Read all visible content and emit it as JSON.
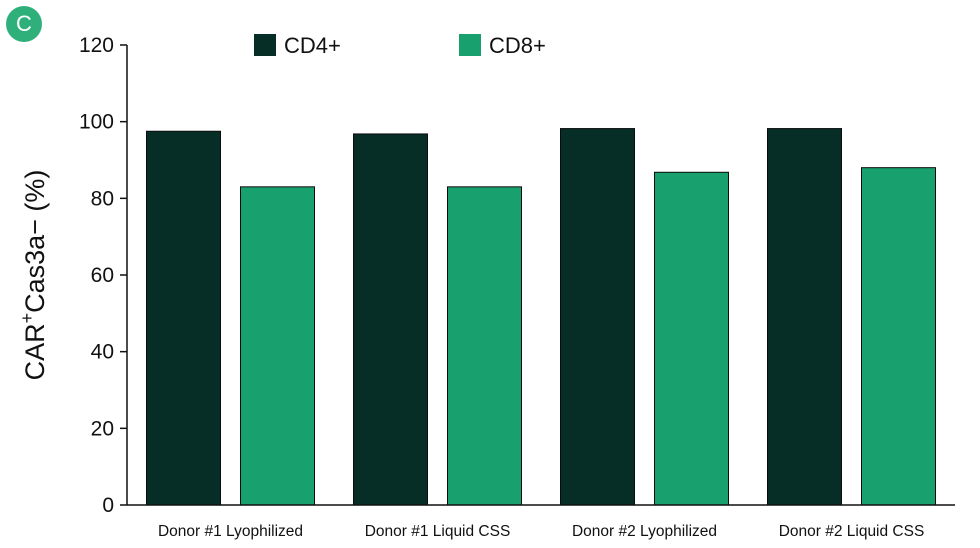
{
  "panel_label": "C",
  "colors": {
    "cd4": "#062e27",
    "cd8": "#18a06e",
    "axis": "#111111",
    "badge": "#2fb07a"
  },
  "chart_data": {
    "type": "bar",
    "categories": [
      "Donor #1 Lyophilized",
      "Donor #1 Liquid CSS",
      "Donor #2 Lyophilized",
      "Donor #2 Liquid CSS"
    ],
    "series": [
      {
        "name": "CD4+",
        "values": [
          97.5,
          96.8,
          98.2,
          98.2
        ]
      },
      {
        "name": "CD8+",
        "values": [
          83.0,
          83.0,
          86.8,
          88.0
        ]
      }
    ],
    "ylabel": {
      "main": "CAR",
      "sup": "+",
      "rest": "Cas3a− (%)"
    },
    "ylim": [
      0,
      120
    ],
    "yticks": [
      0,
      20,
      40,
      60,
      80,
      100,
      120
    ],
    "legend": "top",
    "grid": false
  }
}
